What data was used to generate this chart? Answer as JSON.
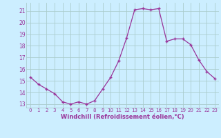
{
  "x": [
    0,
    1,
    2,
    3,
    4,
    5,
    6,
    7,
    8,
    9,
    10,
    11,
    12,
    13,
    14,
    15,
    16,
    17,
    18,
    19,
    20,
    21,
    22,
    23
  ],
  "y": [
    15.3,
    14.7,
    14.3,
    13.9,
    13.2,
    13.0,
    13.2,
    13.0,
    13.3,
    14.3,
    15.3,
    16.7,
    18.7,
    21.1,
    21.2,
    21.1,
    21.2,
    18.4,
    18.6,
    18.6,
    18.1,
    16.8,
    15.8,
    15.2
  ],
  "line_color": "#993399",
  "marker": "+",
  "marker_size": 3,
  "marker_lw": 1.0,
  "line_width": 0.9,
  "bg_color": "#cceeff",
  "grid_color": "#aacccc",
  "xlabel": "Windchill (Refroidissement éolien,°C)",
  "xlabel_color": "#993399",
  "tick_color": "#993399",
  "ylim": [
    12.7,
    21.7
  ],
  "xlim": [
    -0.5,
    23.5
  ],
  "yticks": [
    13,
    14,
    15,
    16,
    17,
    18,
    19,
    20,
    21
  ],
  "xticks": [
    0,
    1,
    2,
    3,
    4,
    5,
    6,
    7,
    8,
    9,
    10,
    11,
    12,
    13,
    14,
    15,
    16,
    17,
    18,
    19,
    20,
    21,
    22,
    23
  ],
  "xtick_labels": [
    "0",
    "1",
    "2",
    "3",
    "4",
    "5",
    "6",
    "7",
    "8",
    "9",
    "10",
    "11",
    "12",
    "13",
    "14",
    "15",
    "16",
    "17",
    "18",
    "19",
    "20",
    "21",
    "22",
    "23"
  ],
  "ytick_labels": [
    "13",
    "14",
    "15",
    "16",
    "17",
    "18",
    "19",
    "20",
    "21"
  ],
  "xlabel_fontsize": 6.0,
  "xtick_fontsize": 5.0,
  "ytick_fontsize": 5.5
}
